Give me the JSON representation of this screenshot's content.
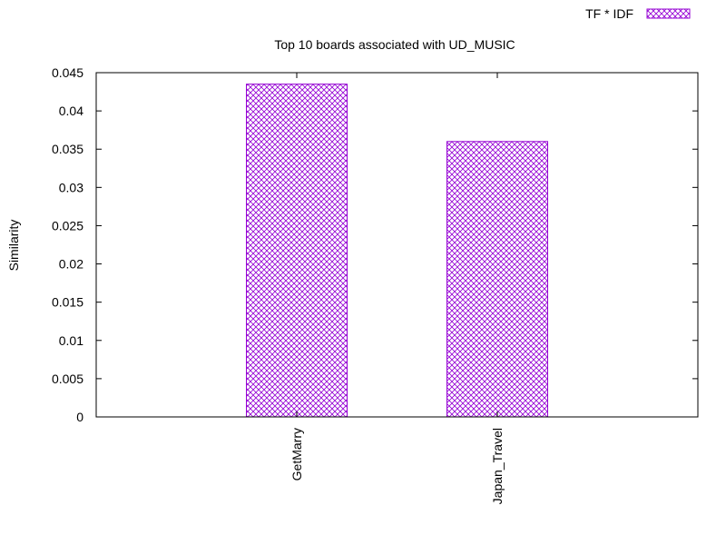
{
  "chart_data": {
    "type": "bar",
    "title": "Top 10 boards associated with UD_MUSIC",
    "xlabel": "",
    "ylabel": "Similarity",
    "ylim": [
      0,
      0.045
    ],
    "yticks": [
      "0",
      "0.005",
      "0.01",
      "0.015",
      "0.02",
      "0.025",
      "0.03",
      "0.035",
      "0.04",
      "0.045"
    ],
    "categories": [
      "GetMarry",
      "Japan_Travel"
    ],
    "series": [
      {
        "name": "TF * IDF",
        "values": [
          0.0435,
          0.036
        ]
      }
    ],
    "bar_color": "#9400d3",
    "legend_position": "top-right",
    "grid": false
  }
}
